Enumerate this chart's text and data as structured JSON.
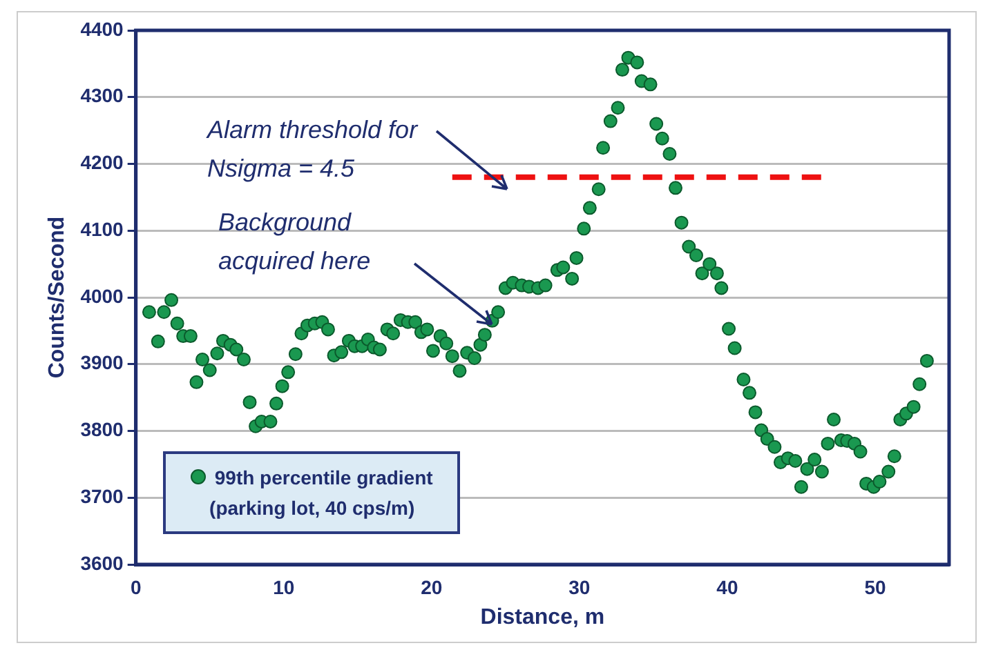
{
  "chart_data": {
    "type": "scatter",
    "xlabel": "Distance, m",
    "ylabel": "Counts/Second",
    "xlim": [
      0,
      55
    ],
    "xticks": [
      0,
      10,
      20,
      30,
      40,
      50
    ],
    "ylim": [
      3600,
      4400
    ],
    "yticks": [
      3600,
      3700,
      3800,
      3900,
      4000,
      4100,
      4200,
      4300,
      4400
    ],
    "grid": "y",
    "legend": "bottom left",
    "marker": "circle",
    "annotations": [
      "Alarm threshold for Nsigma = 4.5",
      "Background acquired here"
    ],
    "series": [
      {
        "name": "99th percentile gradient (parking lot, 40 cps/m)",
        "color": "#1a9850",
        "x": [
          0.9,
          1.5,
          1.9,
          2.4,
          2.8,
          3.2,
          3.7,
          4.1,
          4.5,
          5.0,
          5.5,
          5.9,
          6.4,
          6.8,
          7.3,
          7.7,
          8.1,
          8.5,
          9.1,
          9.5,
          9.9,
          10.3,
          10.8,
          11.2,
          11.6,
          12.1,
          12.6,
          13.0,
          13.4,
          13.9,
          14.4,
          14.8,
          15.3,
          15.7,
          16.1,
          16.5,
          17.0,
          17.4,
          17.9,
          18.4,
          18.9,
          19.3,
          19.7,
          20.1,
          20.6,
          21.0,
          21.4,
          21.9,
          22.4,
          22.9,
          23.3,
          23.6,
          24.1,
          24.5,
          25.0,
          25.5,
          26.1,
          26.6,
          27.2,
          27.7,
          28.5,
          28.9,
          29.5,
          29.8,
          30.3,
          30.7,
          31.3,
          31.6,
          32.1,
          32.6,
          32.9,
          33.3,
          33.9,
          34.2,
          34.8,
          35.2,
          35.6,
          36.1,
          36.5,
          36.9,
          37.4,
          37.9,
          38.3,
          38.8,
          39.3,
          39.6,
          40.1,
          40.5,
          41.1,
          41.5,
          41.9,
          42.3,
          42.7,
          43.2,
          43.6,
          44.1,
          44.6,
          45.0,
          45.4,
          45.9,
          46.4,
          46.8,
          47.2,
          47.7,
          48.1,
          48.6,
          49.0,
          49.4,
          49.9,
          50.3,
          50.9,
          51.3,
          51.7,
          52.1,
          52.6,
          53.0,
          53.5
        ],
        "values": [
          3978,
          3934,
          3978,
          3996,
          3961,
          3942,
          3942,
          3873,
          3907,
          3891,
          3916,
          3935,
          3929,
          3922,
          3907,
          3843,
          3807,
          3814,
          3814,
          3841,
          3867,
          3888,
          3915,
          3946,
          3958,
          3961,
          3963,
          3952,
          3913,
          3918,
          3935,
          3927,
          3927,
          3937,
          3925,
          3922,
          3952,
          3946,
          3966,
          3963,
          3963,
          3948,
          3952,
          3920,
          3942,
          3931,
          3912,
          3890,
          3917,
          3909,
          3929,
          3944,
          3965,
          3978,
          4014,
          4022,
          4018,
          4016,
          4014,
          4018,
          4041,
          4045,
          4028,
          4059,
          4103,
          4134,
          4162,
          4224,
          4264,
          4284,
          4341,
          4359,
          4352,
          4324,
          4319,
          4260,
          4238,
          4215,
          4164,
          4112,
          4076,
          4063,
          4036,
          4050,
          4036,
          4014,
          3953,
          3924,
          3877,
          3857,
          3828,
          3801,
          3788,
          3776,
          3753,
          3759,
          3755,
          3716,
          3743,
          3757,
          3739,
          3781,
          3817,
          3786,
          3785,
          3781,
          3769,
          3721,
          3716,
          3724,
          3739,
          3762,
          3817,
          3826,
          3836,
          3870,
          3905
        ]
      },
      {
        "type": "line",
        "color": "#ee1111",
        "line_style": "dashed",
        "marker": "none",
        "x": [
          21.4,
          46.5
        ],
        "values": [
          4180,
          4180
        ]
      }
    ]
  }
}
